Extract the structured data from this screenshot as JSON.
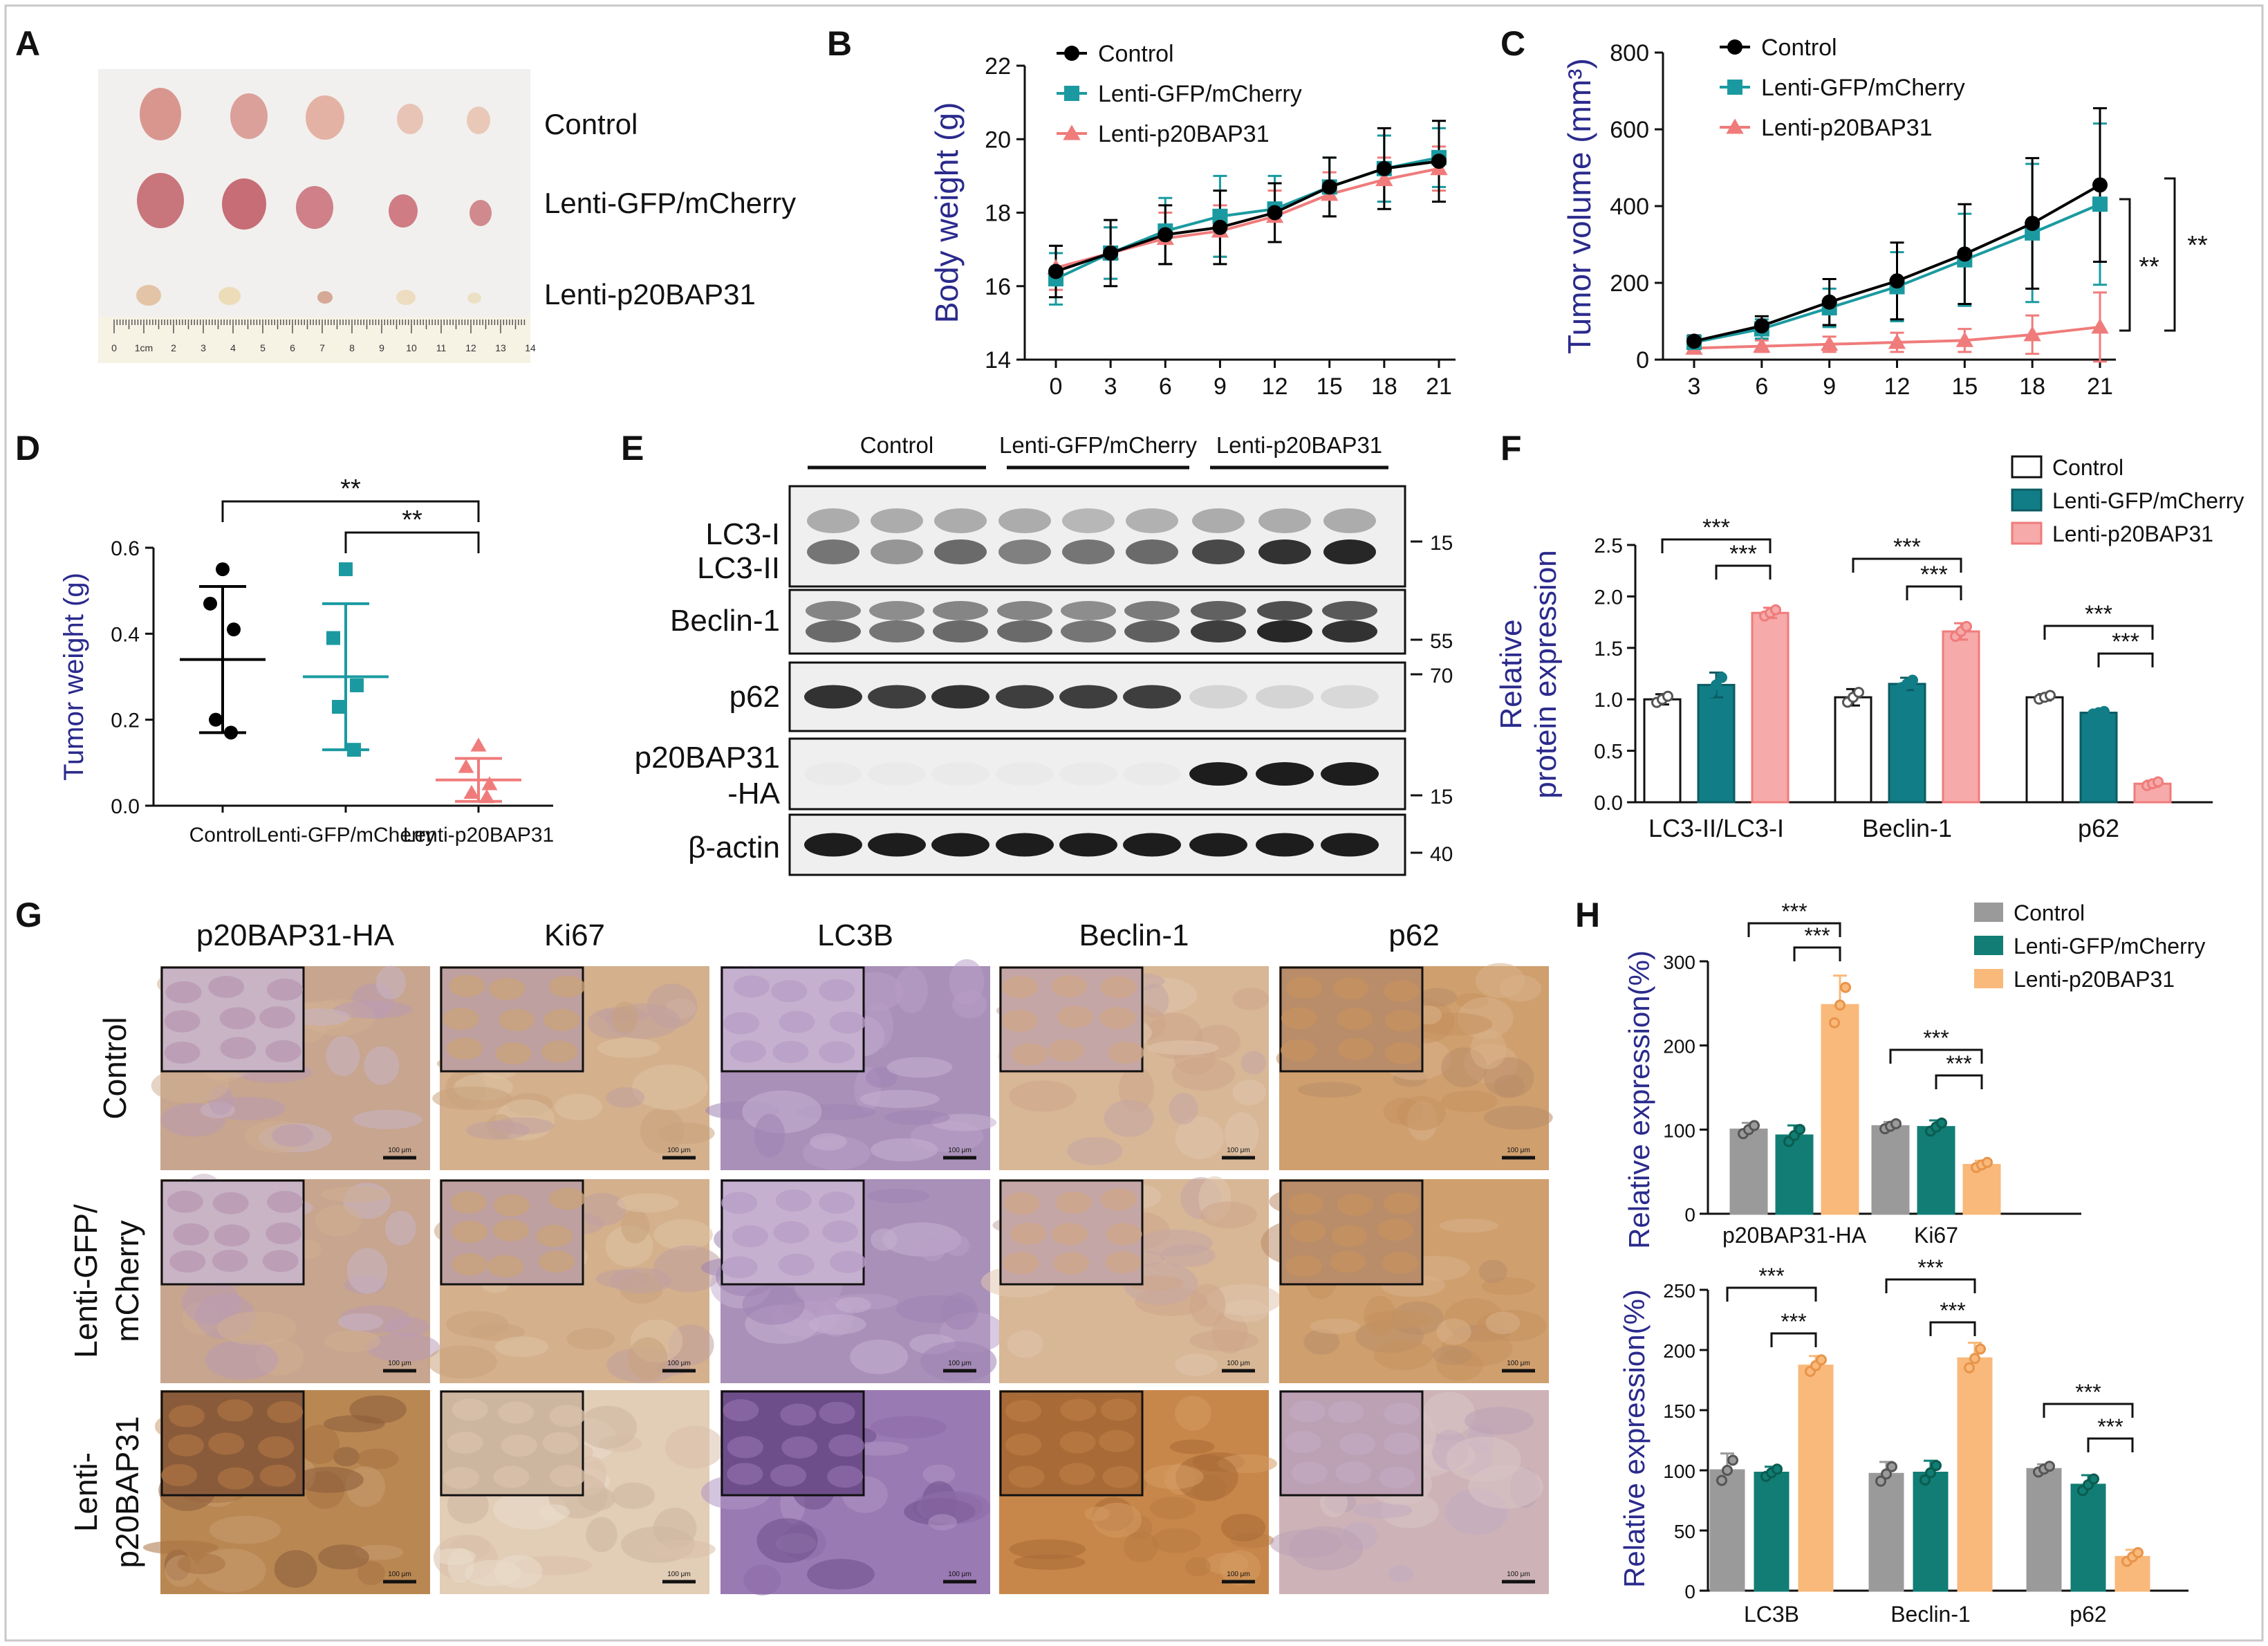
{
  "colors": {
    "control": "#000000",
    "gfp": "#1a9aa0",
    "p20": "#f07b7b",
    "axis_label_blue": "#2b2a8c",
    "f_control_fill": "#ffffff",
    "f_gfp_fill": "#117d86",
    "f_p20_fill": "#f6aaaa",
    "h_control_fill": "#9a9a9a",
    "h_gfp_fill": "#117d74",
    "h_p20_fill": "#f9b97a"
  },
  "panel_letters": [
    "A",
    "B",
    "C",
    "D",
    "E",
    "F",
    "G",
    "H"
  ],
  "legend": {
    "control": "Control",
    "gfp": "Lenti-GFP/mCherry",
    "p20": "Lenti-p20BAP31"
  },
  "panel_a": {
    "labels": [
      "Control",
      "Lenti-GFP/mCherry",
      "Lenti-p20BAP31"
    ],
    "ruler_ticks": [
      "0",
      "1cm",
      "2",
      "3",
      "4",
      "5",
      "6",
      "7",
      "8",
      "9",
      "10",
      "11",
      "12",
      "13",
      "14"
    ]
  },
  "panel_e": {
    "group_labels": [
      "Control",
      "Lenti-GFP/mCherry",
      "Lenti-p20BAP31"
    ],
    "rows": [
      {
        "label_lines": [
          "LC3-I",
          "LC3-II"
        ],
        "markers": [
          "15"
        ]
      },
      {
        "label_lines": [
          "Beclin-1"
        ],
        "markers": [
          "55"
        ]
      },
      {
        "label_lines": [
          "p62"
        ],
        "markers": [
          "70"
        ]
      },
      {
        "label_lines": [
          "p20BAP31",
          "-HA"
        ],
        "markers": [
          "15"
        ]
      },
      {
        "label_lines": [
          "β-actin"
        ],
        "markers": [
          "40"
        ]
      }
    ]
  },
  "panel_g": {
    "columns": [
      "p20BAP31-HA",
      "Ki67",
      "LC3B",
      "Beclin-1",
      "p62"
    ],
    "row_labels": [
      [
        "Control"
      ],
      [
        "Lenti-GFP/",
        "mCherry"
      ],
      [
        "Lenti-",
        "p20BAP31"
      ]
    ],
    "scale_bar": "100 μm"
  },
  "chart_data": [
    {
      "id": "B",
      "type": "line",
      "title": "",
      "xlabel": "",
      "ylabel": "Body weight (g)",
      "x": [
        0,
        3,
        6,
        9,
        12,
        15,
        18,
        21
      ],
      "xticks": [
        "0",
        "3",
        "6",
        "9",
        "12",
        "15",
        "18",
        "21"
      ],
      "ylim": [
        14,
        22
      ],
      "yticks": [
        "14",
        "16",
        "18",
        "20",
        "22"
      ],
      "series": [
        {
          "name": "Control",
          "key": "control",
          "marker": "circle",
          "values": [
            16.4,
            16.9,
            17.4,
            17.6,
            18.0,
            18.7,
            19.2,
            19.4
          ],
          "errors": [
            0.7,
            0.9,
            0.8,
            1.0,
            0.8,
            0.8,
            1.1,
            1.1
          ]
        },
        {
          "name": "Lenti-GFP/mCherry",
          "key": "gfp",
          "marker": "square",
          "values": [
            16.2,
            16.9,
            17.5,
            17.9,
            18.1,
            18.7,
            19.2,
            19.5
          ],
          "errors": [
            0.7,
            0.7,
            0.9,
            1.1,
            0.9,
            0.8,
            0.9,
            0.8
          ]
        },
        {
          "name": "Lenti-p20BAP31",
          "key": "p20",
          "marker": "triangle",
          "values": [
            16.5,
            16.9,
            17.3,
            17.5,
            17.9,
            18.5,
            18.9,
            19.2
          ],
          "errors": [
            0.6,
            0.7,
            0.7,
            0.7,
            0.7,
            0.6,
            0.6,
            0.6
          ]
        }
      ]
    },
    {
      "id": "C",
      "type": "line",
      "title": "",
      "xlabel": "",
      "ylabel": "Tumor volume (mm³)",
      "x": [
        3,
        6,
        9,
        12,
        15,
        18,
        21
      ],
      "xticks": [
        "3",
        "6",
        "9",
        "12",
        "15",
        "18",
        "21"
      ],
      "ylim": [
        0,
        800
      ],
      "yticks": [
        "0",
        "200",
        "400",
        "600",
        "800"
      ],
      "significance": [
        "**",
        "**"
      ],
      "series": [
        {
          "name": "Control",
          "key": "control",
          "marker": "circle",
          "values": [
            48,
            88,
            150,
            205,
            275,
            355,
            455
          ],
          "errors": [
            15,
            25,
            60,
            100,
            130,
            170,
            200
          ]
        },
        {
          "name": "Lenti-GFP/mCherry",
          "key": "gfp",
          "marker": "square",
          "values": [
            45,
            80,
            135,
            190,
            260,
            330,
            405
          ],
          "errors": [
            15,
            25,
            50,
            90,
            120,
            180,
            210
          ]
        },
        {
          "name": "Lenti-p20BAP31",
          "key": "p20",
          "marker": "triangle",
          "values": [
            30,
            35,
            40,
            45,
            50,
            65,
            85
          ],
          "errors": [
            10,
            15,
            20,
            25,
            30,
            50,
            90
          ]
        }
      ]
    },
    {
      "id": "D",
      "type": "scatter",
      "title": "",
      "xlabel": "",
      "ylabel": "Tumor weight (g)",
      "categories": [
        "Control",
        "Lenti-GFP/mCherry",
        "Lenti-p20BAP31"
      ],
      "ylim": [
        0,
        0.6
      ],
      "yticks": [
        "0.0",
        "0.2",
        "0.4",
        "0.6"
      ],
      "significance": [
        "**",
        "**"
      ],
      "series": [
        {
          "name": "Control",
          "key": "control",
          "marker": "circle",
          "points": [
            0.55,
            0.47,
            0.41,
            0.2,
            0.17
          ],
          "mean": 0.34,
          "sd": 0.17
        },
        {
          "name": "Lenti-GFP/mCherry",
          "key": "gfp",
          "marker": "square",
          "points": [
            0.55,
            0.39,
            0.28,
            0.23,
            0.13
          ],
          "mean": 0.3,
          "sd": 0.17
        },
        {
          "name": "Lenti-p20BAP31",
          "key": "p20",
          "marker": "triangle",
          "points": [
            0.14,
            0.09,
            0.05,
            0.03,
            0.02
          ],
          "mean": 0.06,
          "sd": 0.05
        }
      ]
    },
    {
      "id": "F",
      "type": "bar",
      "title": "",
      "xlabel": "",
      "ylabel_lines": [
        "Relative",
        "protein expression"
      ],
      "categories": [
        "LC3-II/LC3-I",
        "Beclin-1",
        "p62"
      ],
      "ylim": [
        0,
        2.5
      ],
      "yticks": [
        "0.0",
        "0.5",
        "1.0",
        "1.5",
        "2.0",
        "2.5"
      ],
      "significance": [
        "***",
        "***",
        "***",
        "***",
        "***",
        "***"
      ],
      "series": [
        {
          "name": "Control",
          "key": "control",
          "values": [
            1.0,
            1.02,
            1.02
          ],
          "errors": [
            0.05,
            0.08,
            0.03
          ]
        },
        {
          "name": "Lenti-GFP/mCherry",
          "key": "gfp",
          "values": [
            1.14,
            1.15,
            0.87
          ],
          "errors": [
            0.12,
            0.06,
            0.02
          ]
        },
        {
          "name": "Lenti-p20BAP31",
          "key": "p20",
          "values": [
            1.84,
            1.66,
            0.18
          ],
          "errors": [
            0.05,
            0.08,
            0.03
          ]
        }
      ]
    },
    {
      "id": "H1",
      "type": "bar",
      "title": "",
      "xlabel": "",
      "ylabel": "Relative expression(%)",
      "categories": [
        "p20BAP31-HA",
        "Ki67"
      ],
      "ylim": [
        0,
        300
      ],
      "yticks": [
        "0",
        "100",
        "200",
        "300"
      ],
      "significance": [
        "***",
        "***",
        "***",
        "***"
      ],
      "series": [
        {
          "name": "Control",
          "key": "control",
          "values": [
            100,
            104
          ],
          "errors": [
            8,
            5
          ]
        },
        {
          "name": "Lenti-GFP/mCherry",
          "key": "gfp",
          "values": [
            93,
            103
          ],
          "errors": [
            12,
            8
          ]
        },
        {
          "name": "Lenti-p20BAP31",
          "key": "p20",
          "values": [
            248,
            58
          ],
          "errors": [
            35,
            5
          ]
        }
      ]
    },
    {
      "id": "H2",
      "type": "bar",
      "title": "",
      "xlabel": "",
      "ylabel": "Relative expression(%)",
      "categories": [
        "LC3B",
        "Beclin-1",
        "p62"
      ],
      "ylim": [
        0,
        250
      ],
      "yticks": [
        "0",
        "50",
        "100",
        "150",
        "200",
        "250"
      ],
      "significance": [
        "***",
        "***",
        "***",
        "***",
        "***",
        "***"
      ],
      "series": [
        {
          "name": "Control",
          "key": "control",
          "values": [
            100,
            97,
            101
          ],
          "errors": [
            14,
            10,
            4
          ]
        },
        {
          "name": "Lenti-GFP/mCherry",
          "key": "gfp",
          "values": [
            98,
            98,
            88
          ],
          "errors": [
            5,
            10,
            8
          ]
        },
        {
          "name": "Lenti-p20BAP31",
          "key": "p20",
          "values": [
            187,
            193,
            28
          ],
          "errors": [
            8,
            13,
            6
          ]
        }
      ]
    }
  ]
}
